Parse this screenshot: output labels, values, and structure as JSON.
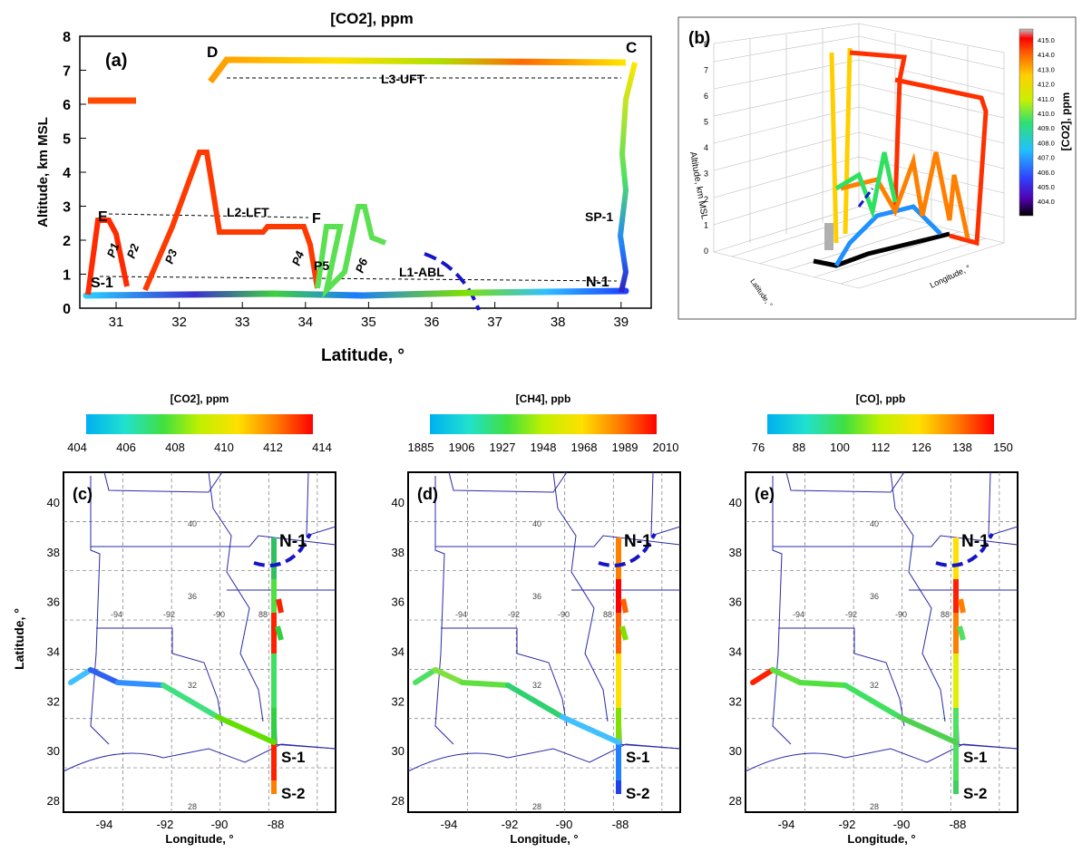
{
  "panel_a": {
    "title": "[CO2], ppm",
    "letter": "(a)",
    "xlabel": "Latitude, °",
    "ylabel": "Altitude, km MSL",
    "x_ticks": [
      "31",
      "32",
      "33",
      "34",
      "35",
      "36",
      "37",
      "38",
      "39"
    ],
    "y_ticks": [
      "0",
      "1",
      "2",
      "3",
      "4",
      "5",
      "6",
      "7",
      "8"
    ],
    "annotations": {
      "D": "D",
      "C": "C",
      "E": "E",
      "F": "F",
      "L3": "L3-UFT",
      "L2": "L2-LFT",
      "L1": "L1-ABL",
      "SP1": "SP-1",
      "N1": "N-1",
      "S1": "S-1",
      "P1": "P1",
      "P2": "P2",
      "P3": "P3",
      "P4": "P4",
      "P5": "P5",
      "P6": "P6"
    }
  },
  "panel_b": {
    "letter": "(b)",
    "zlabel": "Altitude, km MSL",
    "xlabel": "Latitude, °",
    "ylabel": "Longitude, °",
    "z_ticks": [
      "0",
      "1",
      "2",
      "3",
      "4",
      "5",
      "6",
      "7",
      "8"
    ],
    "colorbar_label": "[CO2], ppm",
    "colorbar_ticks": [
      "415.0",
      "414.0",
      "413.0",
      "412.0",
      "411.0",
      "410.0",
      "409.0",
      "408.0",
      "407.0",
      "406.0",
      "405.0",
      "404.0"
    ]
  },
  "colorbars": [
    {
      "label": "[CO2], ppm",
      "ticks": [
        "404",
        "406",
        "408",
        "410",
        "412",
        "414"
      ]
    },
    {
      "label": "[CH4], ppb",
      "ticks": [
        "1885",
        "1906",
        "1927",
        "1948",
        "1968",
        "1989",
        "2010"
      ]
    },
    {
      "label": "[CO], ppb",
      "ticks": [
        "76",
        "88",
        "100",
        "112",
        "126",
        "138",
        "150"
      ]
    }
  ],
  "maps": {
    "letters": [
      "(c)",
      "(d)",
      "(e)"
    ],
    "xlabel": "Longitude, °",
    "ylabel": "Latitude, °",
    "x_ticks": [
      "-94",
      "-92",
      "-90",
      "-88"
    ],
    "y_ticks": [
      "28",
      "30",
      "32",
      "34",
      "36",
      "38",
      "40"
    ],
    "inner_x": [
      "-94",
      "-92",
      "-90",
      "88"
    ],
    "inner_y": [
      "40",
      "36",
      "32",
      "28"
    ],
    "labels": {
      "N1": "N-1",
      "S1": "S-1",
      "S2": "S-2"
    }
  },
  "chart_data": [
    {
      "type": "line",
      "title": "[CO2], ppm",
      "xlabel": "Latitude, °",
      "ylabel": "Altitude, km MSL",
      "xlim": [
        30.4,
        39.3
      ],
      "ylim": [
        0,
        8
      ],
      "series": [
        {
          "x": [
            30.5,
            30.8,
            31.2,
            31.5,
            32.0,
            32.5,
            33.0,
            33.5,
            34.0,
            34.2,
            34.5,
            35.0,
            35.5,
            36.0,
            36.5,
            37.0,
            37.5,
            38.0,
            38.5,
            39.0
          ],
          "y": [
            0.35,
            0.35,
            0.35,
            0.35,
            0.35,
            0.38,
            0.38,
            0.35,
            0.35,
            0.4,
            0.4,
            0.4,
            0.45,
            0.45,
            0.45,
            0.45,
            0.5,
            0.5,
            0.5,
            0.5
          ]
        },
        {
          "x": [
            30.55,
            30.7,
            30.9,
            31.1,
            31.3,
            31.5
          ],
          "y": [
            0.5,
            2.6,
            2.6,
            2.6,
            2.0,
            0.4
          ]
        },
        {
          "x": [
            31.6,
            31.9,
            32.2,
            32.3,
            32.5,
            33.0,
            33.5,
            33.9,
            34.05
          ],
          "y": [
            0.5,
            2.2,
            3.85,
            3.85,
            2.25,
            2.25,
            2.4,
            2.4,
            1.3
          ]
        },
        {
          "x": [
            32.3,
            32.5,
            33.0,
            34.0,
            35.0,
            36.0,
            37.0,
            38.0,
            38.9,
            39.2
          ],
          "y": [
            6.7,
            7.35,
            7.35,
            7.35,
            7.35,
            7.35,
            7.3,
            7.25,
            7.25,
            7.2
          ]
        },
        {
          "x": [
            39.2,
            39.0,
            39.05,
            38.95,
            39.0,
            38.9,
            39.0
          ],
          "y": [
            7.2,
            5.5,
            4.5,
            3.0,
            2.0,
            1.0,
            0.5
          ]
        },
        {
          "x": [
            30.5,
            31.2
          ],
          "y": [
            6.15,
            6.15
          ]
        }
      ]
    },
    {
      "type": "scatter",
      "title": "",
      "zlabel": "Altitude, km MSL",
      "colorbar": [
        404,
        415
      ]
    },
    {
      "type": "scatter",
      "title": "",
      "colorbar_label": "[CO2], ppm",
      "xlim": [
        -95.2,
        -87.2
      ],
      "ylim": [
        27.8,
        41.2
      ],
      "xlabel": "Longitude, °",
      "ylabel": "Latitude, °"
    },
    {
      "type": "scatter",
      "title": "",
      "colorbar_label": "[CH4], ppb",
      "xlim": [
        -95.2,
        -87.2
      ],
      "ylim": [
        27.8,
        41.2
      ],
      "xlabel": "Longitude, °"
    },
    {
      "type": "scatter",
      "title": "",
      "colorbar_label": "[CO], ppb",
      "xlim": [
        -95.2,
        -87.2
      ],
      "ylim": [
        27.8,
        41.2
      ],
      "xlabel": "Longitude, °"
    }
  ],
  "colors": {
    "jet_stops": [
      "#00b0f0",
      "#20e0d0",
      "#40e040",
      "#c0f000",
      "#ffe000",
      "#ff8000",
      "#ff0000"
    ],
    "dashed_front": "#1515c8",
    "map_line": "#2a2aa8"
  }
}
